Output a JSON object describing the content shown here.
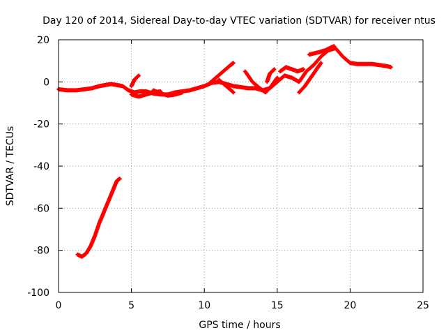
{
  "chart_data": {
    "type": "scatter",
    "title": "Day 120 of 2014, Sidereal Day-to-day VTEC variation (SDTVAR) for receiver ntus",
    "xlabel": "GPS time / hours",
    "ylabel": "SDTVAR / TECUs",
    "xlim": [
      0,
      25
    ],
    "ylim": [
      -100,
      20
    ],
    "xticks": [
      0,
      5,
      10,
      15,
      20,
      25
    ],
    "yticks": [
      -100,
      -80,
      -60,
      -40,
      -20,
      0,
      20
    ],
    "grid": true,
    "series": [
      {
        "name": "SDTVAR",
        "color": "#ff0000",
        "marker": "plus",
        "segments": [
          {
            "x": [
              0.0,
              0.6,
              1.2,
              1.8,
              2.3,
              2.8,
              3.2,
              3.6,
              4.0,
              4.4,
              4.8,
              5.2,
              5.6,
              6.0,
              6.5,
              7.0,
              7.5,
              8.0,
              8.5,
              9.0,
              9.5,
              10.0,
              10.5,
              11.0,
              11.5,
              12.0,
              12.5,
              13.0,
              13.5,
              14.0,
              14.5,
              15.0,
              15.5,
              16.0,
              16.5,
              17.0,
              17.5,
              18.0,
              18.5,
              19.0,
              19.5,
              20.0,
              20.5,
              21.0,
              21.5,
              22.0,
              22.5,
              22.8
            ],
            "y": [
              -3.5,
              -4.0,
              -4.0,
              -3.5,
              -3.0,
              -2.0,
              -1.5,
              -1.0,
              -1.5,
              -2.0,
              -4.0,
              -5.0,
              -4.5,
              -4.5,
              -5.5,
              -6.0,
              -6.0,
              -5.0,
              -4.5,
              -4.0,
              -3.0,
              -2.0,
              -0.5,
              0.0,
              -1.0,
              -2.0,
              -2.5,
              -3.0,
              -3.0,
              -4.0,
              -3.0,
              0.0,
              3.0,
              2.0,
              0.0,
              5.0,
              8.0,
              12.0,
              15.0,
              16.0,
              12.0,
              9.0,
              8.5,
              8.5,
              8.5,
              8.0,
              7.5,
              7.0
            ]
          },
          {
            "x": [
              5.0,
              5.5,
              6.0,
              6.5,
              7.0
            ],
            "y": [
              -6.0,
              -7.0,
              -6.0,
              -5.0,
              -4.5
            ]
          },
          {
            "x": [
              5.0,
              5.2,
              5.5
            ],
            "y": [
              -2.0,
              1.0,
              3.0
            ]
          },
          {
            "x": [
              6.5,
              7.0,
              7.5,
              8.0,
              8.5
            ],
            "y": [
              -4.0,
              -5.5,
              -6.5,
              -6.0,
              -5.0
            ]
          },
          {
            "x": [
              10.3,
              10.8,
              11.3,
              11.8,
              12.0
            ],
            "y": [
              -1.0,
              2.0,
              5.0,
              8.0,
              9.0
            ]
          },
          {
            "x": [
              11.0,
              11.5,
              12.0
            ],
            "y": [
              1.0,
              -2.0,
              -5.0
            ]
          },
          {
            "x": [
              12.8,
              13.3,
              13.8,
              14.2,
              14.6,
              15.0
            ],
            "y": [
              5.0,
              0.0,
              -3.0,
              -5.0,
              -2.0,
              2.0
            ]
          },
          {
            "x": [
              14.3,
              14.5,
              14.8
            ],
            "y": [
              0.0,
              4.0,
              6.0
            ]
          },
          {
            "x": [
              15.2,
              15.6,
              16.0,
              16.4,
              16.8
            ],
            "y": [
              5.0,
              7.0,
              6.0,
              5.0,
              6.0
            ]
          },
          {
            "x": [
              16.5,
              16.9,
              17.3,
              17.7,
              18.0
            ],
            "y": [
              -5.0,
              -2.0,
              2.0,
              6.0,
              9.0
            ]
          },
          {
            "x": [
              17.2,
              17.8,
              18.3,
              18.6,
              18.9
            ],
            "y": [
              13.0,
              14.0,
              15.0,
              16.0,
              17.0
            ]
          },
          {
            "x": [
              1.3,
              1.6,
              1.9,
              2.2,
              2.5,
              2.8,
              3.1,
              3.4,
              3.7,
              4.0,
              4.2
            ],
            "y": [
              -82.0,
              -83.0,
              -81.5,
              -78.0,
              -73.0,
              -67.0,
              -62.0,
              -57.0,
              -52.0,
              -47.0,
              -46.0
            ]
          }
        ]
      }
    ]
  }
}
